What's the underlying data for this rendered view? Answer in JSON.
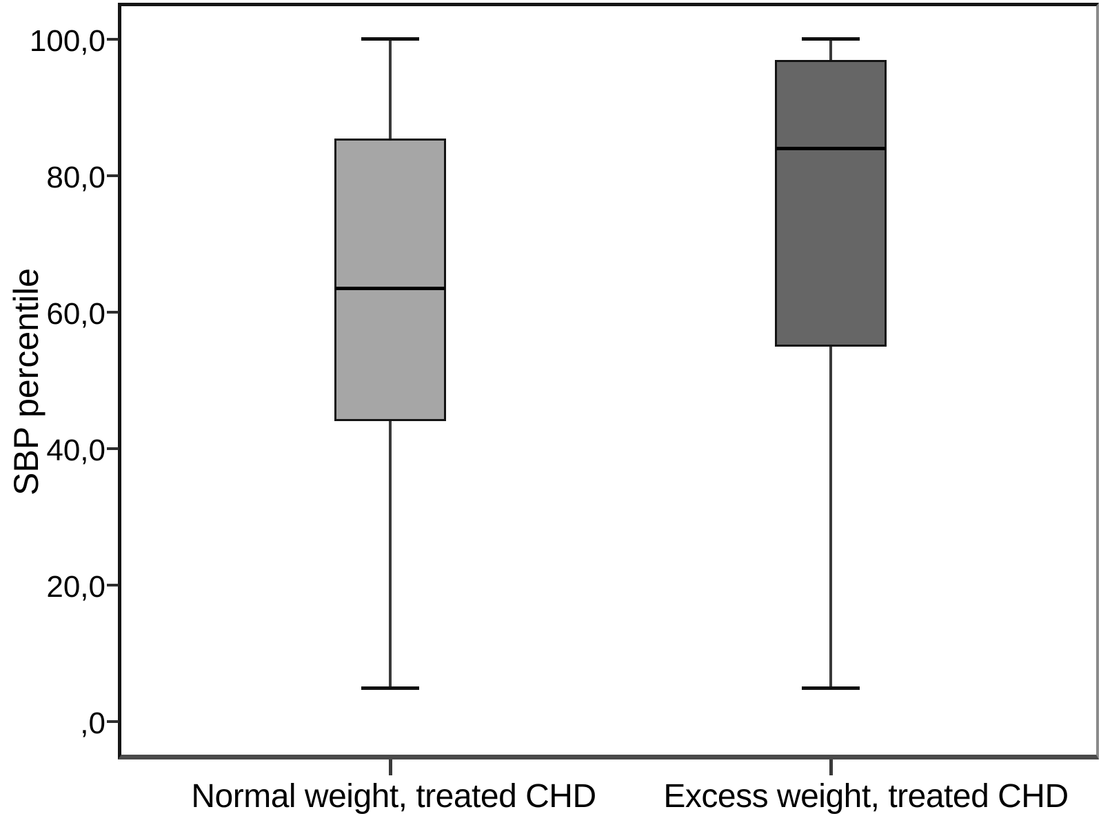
{
  "chart_data": {
    "type": "boxplot",
    "title": "",
    "ylabel": "SBP percentile",
    "xlabel": "",
    "ylim": [
      -5,
      105
    ],
    "grid": false,
    "legend": "none",
    "y_tick_format": "decimal-comma",
    "yticks": [
      {
        "value": 0,
        "label": ",0"
      },
      {
        "value": 20,
        "label": "20,0"
      },
      {
        "value": 40,
        "label": "40,0"
      },
      {
        "value": 60,
        "label": "60,0"
      },
      {
        "value": 80,
        "label": "80,0"
      },
      {
        "value": 100,
        "label": "100,0"
      }
    ],
    "boxes": [
      {
        "category": "Normal weight, treated CHD",
        "whisker_min": 5,
        "q1": 44,
        "median": 63.5,
        "q3": 85.5,
        "whisker_max": 100,
        "fill": "#a6a6a6"
      },
      {
        "category": "Excess weight, treated CHD",
        "whisker_min": 5,
        "q1": 55,
        "median": 84,
        "q3": 97,
        "whisker_max": 100,
        "fill": "#666666"
      }
    ],
    "colors": {
      "box_border": "#141414",
      "median_line": "#000000",
      "whisker": "#3a3a3a",
      "axis_frame": "#161616",
      "background": "#ffffff"
    }
  }
}
